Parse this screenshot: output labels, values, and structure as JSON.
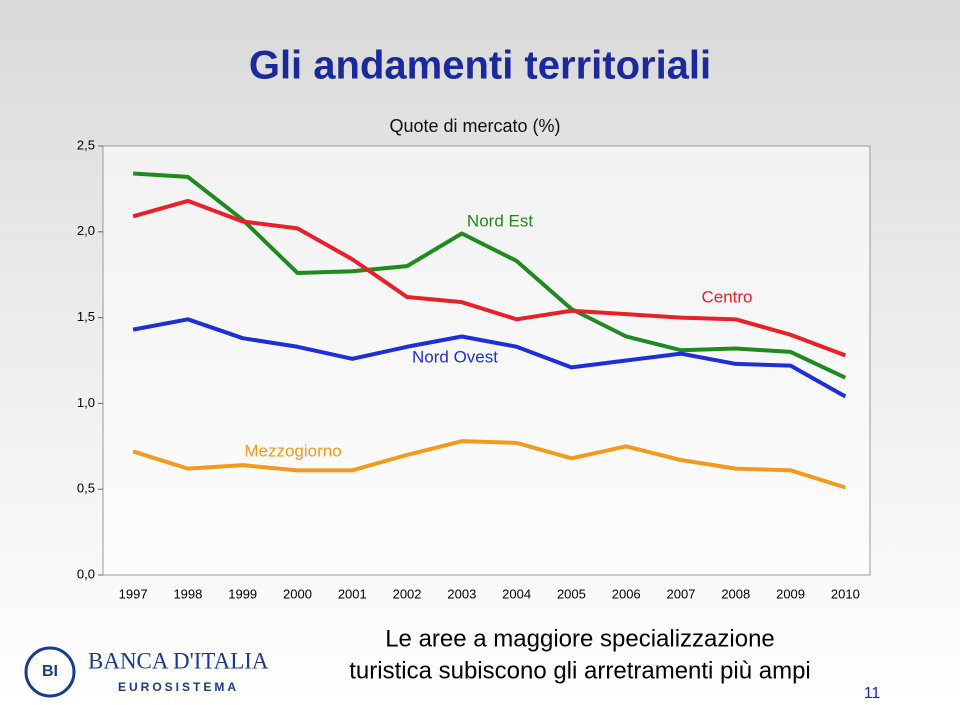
{
  "chart_data": {
    "type": "line",
    "title": "Gli andamenti territoriali",
    "subtitle": "Quote di mercato (%)",
    "categories": [
      "1997",
      "1998",
      "1999",
      "2000",
      "2001",
      "2002",
      "2003",
      "2004",
      "2005",
      "2006",
      "2007",
      "2008",
      "2009",
      "2010"
    ],
    "series": [
      {
        "name": "Nord Est",
        "color": "#1f8a1f",
        "values": [
          2.34,
          2.32,
          2.07,
          1.76,
          1.77,
          1.8,
          1.99,
          1.83,
          1.55,
          1.39,
          1.31,
          1.32,
          1.3,
          1.15
        ]
      },
      {
        "name": "Centro",
        "color": "#e8202a",
        "values": [
          2.09,
          2.18,
          2.06,
          2.02,
          1.84,
          1.62,
          1.59,
          1.49,
          1.54,
          1.52,
          1.5,
          1.49,
          1.4,
          1.28
        ]
      },
      {
        "name": "Nord Ovest",
        "color": "#1d2fd6",
        "values": [
          1.43,
          1.49,
          1.38,
          1.33,
          1.26,
          1.33,
          1.39,
          1.33,
          1.21,
          1.25,
          1.29,
          1.23,
          1.22,
          1.04
        ]
      },
      {
        "name": "Mezzogiorno",
        "color": "#f39a1e",
        "values": [
          0.72,
          0.62,
          0.64,
          0.61,
          0.61,
          0.7,
          0.78,
          0.77,
          0.68,
          0.75,
          0.67,
          0.62,
          0.61,
          0.51
        ]
      }
    ],
    "ylim": [
      0,
      2.5
    ],
    "yticks": [
      {
        "value": 0,
        "label": "0,0"
      },
      {
        "value": 0.5,
        "label": "0,5"
      },
      {
        "value": 1,
        "label": "1,0"
      },
      {
        "value": 1.5,
        "label": "1,5"
      },
      {
        "value": 2,
        "label": "2,0"
      },
      {
        "value": 2.5,
        "label": "2,5"
      }
    ],
    "annotation": [
      "Le aree a maggiore specializzazione",
      "turistica subiscono gli arretramenti più ampi"
    ]
  },
  "slide": {
    "logo": [
      "BANCA D'ITALIA",
      "EUROSISTEMA"
    ],
    "page_number": "11"
  }
}
